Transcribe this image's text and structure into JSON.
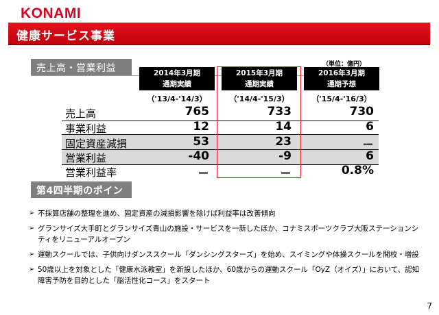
{
  "logo": "KONAMI",
  "banner_title": "健康サービス事業",
  "section1_title": "売上高・営業利益",
  "unit_note": "（単位：億円）",
  "columns": [
    {
      "line1": "2014年3月期",
      "line2": "通期実績",
      "period": "（'13/4-'14/3）"
    },
    {
      "line1": "2015年3月期",
      "line2": "通期実績",
      "period": "（'14/4-'15/3）"
    },
    {
      "line1": "2016年3月期",
      "line2": "通期予想",
      "period": "（'15/4-'16/3）"
    }
  ],
  "rows": [
    {
      "label": "売上高",
      "values": [
        "765",
        "733",
        "730"
      ]
    },
    {
      "label": "事業利益",
      "values": [
        "12",
        "14",
        "6"
      ]
    },
    {
      "label": "固定資産減損",
      "values": [
        "53",
        "23",
        "－"
      ]
    },
    {
      "label": "営業利益",
      "values": [
        "-40",
        "-9",
        "6"
      ]
    },
    {
      "label": "営業利益率",
      "values": [
        "－",
        "－",
        "0.8%"
      ]
    }
  ],
  "section2_title": "第4四半期のポイント",
  "bullet_marker": "➢",
  "bullets": [
    "不採算店舗の整理を進め、固定資産の減損影響を除けば利益率は改善傾向",
    "グランサイズ大手町とグランサイズ青山の施設・サービスを一新したほか、コナミスポーツクラブ大阪ステーションシティをリニューアルオープン",
    "運動スクールでは、子供向けダンススクール「ダンシングスターズ」を始め、スイミングや体操スクールを開校・増設",
    "50歳以上を対象とした「健康水泳教室」を新設したほか、60歳からの運動スクール「OyZ（オイズ）」において、認知障害予防を目的とした「脳活性化コース」をスタート"
  ],
  "page_number": "7",
  "colors": {
    "brand_red": "#d8001c",
    "banner_red": "#c4000e",
    "section_gray": "#7f7f7f",
    "row_gray": "#d9d9d9"
  }
}
